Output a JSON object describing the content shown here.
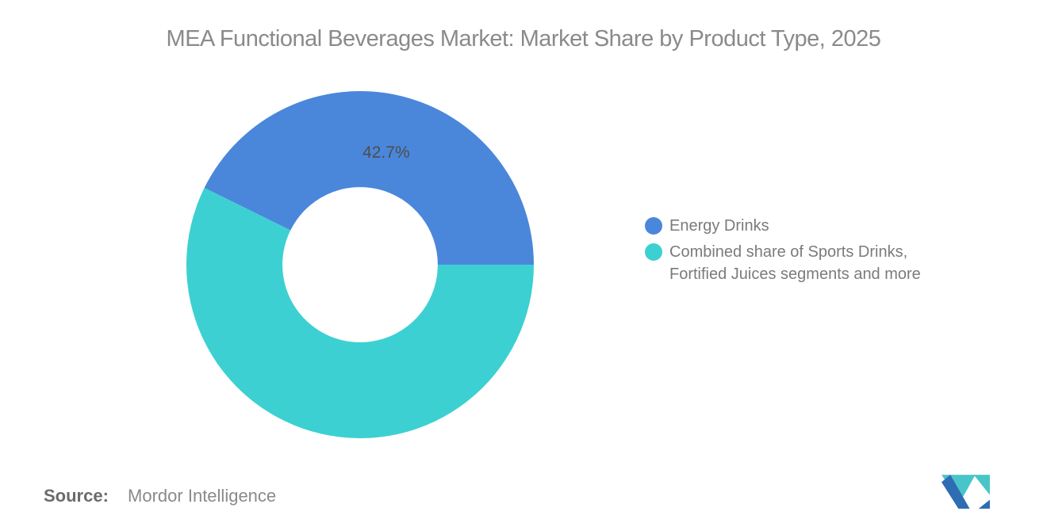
{
  "title": "MEA Functional Beverages Market: Market Share by Product Type, 2025",
  "chart_data": {
    "type": "pie",
    "subtype": "donut",
    "categories": [
      "Energy Drinks",
      "Combined share of Sports Drinks, Fortified Juices segments and more"
    ],
    "values": [
      42.7,
      57.3
    ],
    "colors": [
      "#4a87db",
      "#3dd0d2"
    ],
    "data_labels": [
      "42.7%",
      ""
    ],
    "start_angle_deg": 0,
    "direction": "counterclockwise",
    "inner_radius_ratio": 0.447,
    "label_radius_ratio": 0.66,
    "legend_position": "right",
    "title": "MEA Functional Beverages Market: Market Share by Product Type, 2025"
  },
  "legend": {
    "items": [
      {
        "label": "Energy Drinks",
        "color": "#4a87db"
      },
      {
        "label": "Combined share of Sports Drinks, Fortified Juices segments and more",
        "color": "#3dd0d2"
      }
    ]
  },
  "source": {
    "label": "Source:",
    "value": "Mordor Intelligence"
  },
  "logo": {
    "name": "mordor-intelligence-logo",
    "blue": "#2e6cb3",
    "teal": "#49c5c9"
  }
}
